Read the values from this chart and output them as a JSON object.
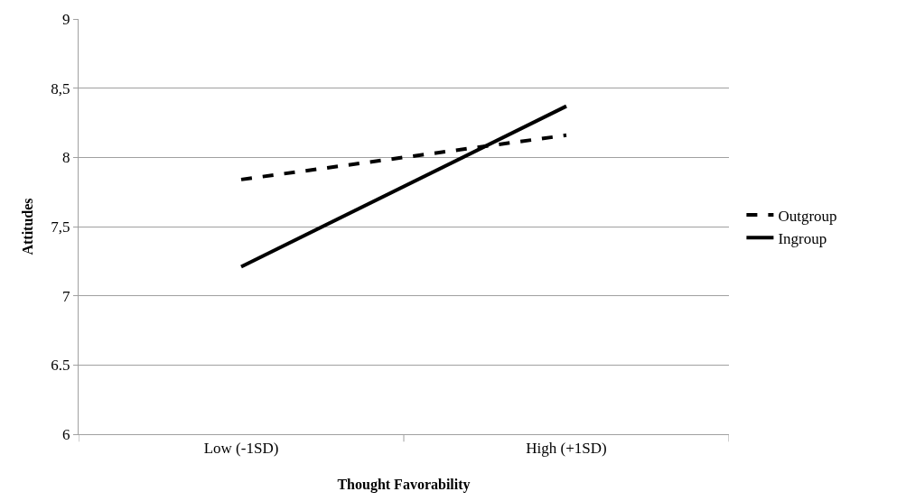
{
  "chart_data": {
    "type": "line",
    "xlabel": "Thought Favorability",
    "ylabel": "Attitudes",
    "categories": [
      "Low (-1SD)",
      "High (+1SD)"
    ],
    "series": [
      {
        "name": "Outgroup",
        "color": "#000000",
        "values": [
          7.84,
          8.16
        ],
        "line_style": "dashed"
      },
      {
        "name": "Ingroup",
        "color": "#000000",
        "values": [
          7.21,
          8.37
        ],
        "line_style": "solid"
      }
    ],
    "ylim": [
      6,
      9
    ],
    "yticks": [
      6,
      6.5,
      {
        "value": 7,
        "label": "7"
      },
      {
        "value": 7.5,
        "label": "7,5"
      },
      {
        "value": 8,
        "label": "8"
      },
      {
        "value": 8.5,
        "label": "8,5"
      },
      9
    ],
    "grid": "y",
    "legend": "right",
    "marker": "none"
  }
}
